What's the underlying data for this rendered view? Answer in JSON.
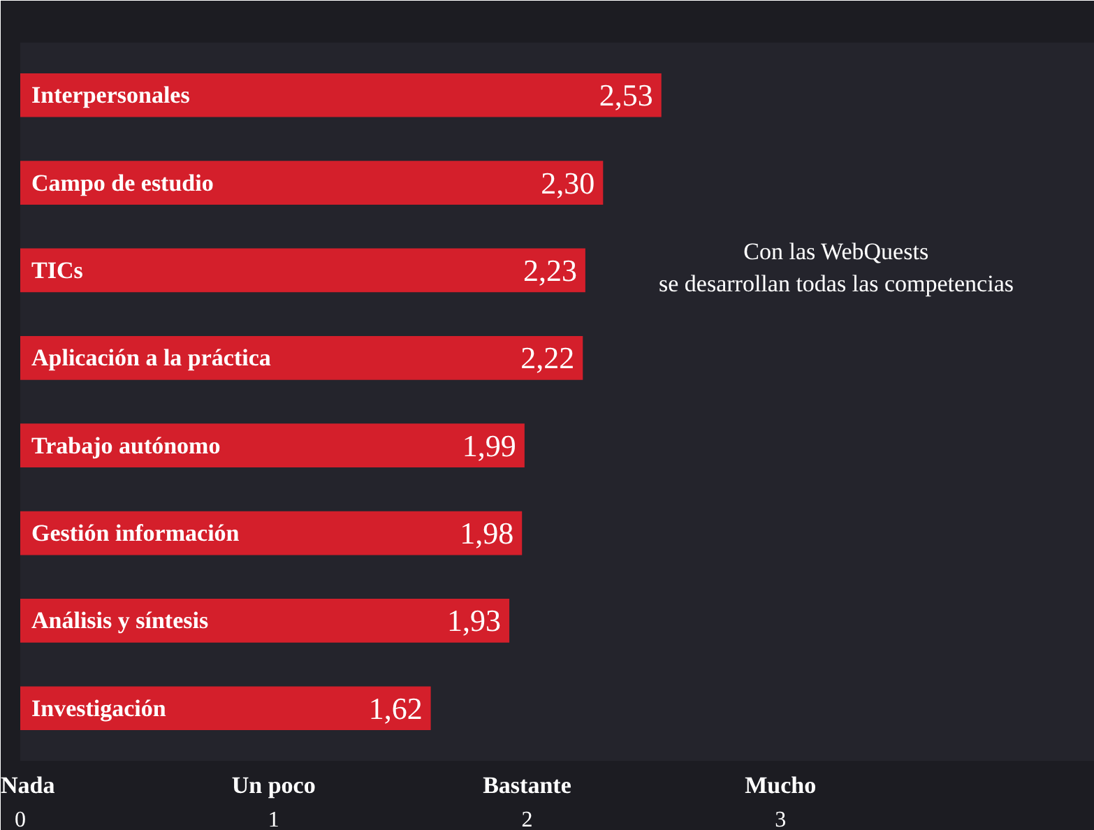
{
  "chart_data": {
    "type": "bar",
    "orientation": "horizontal",
    "categories": [
      "Interpersonales",
      "Campo de estudio",
      "TICs",
      "Aplicación a la práctica",
      "Trabajo autónomo",
      "Gestión información",
      "Análisis y síntesis",
      "Investigación"
    ],
    "values": [
      2.53,
      2.3,
      2.23,
      2.22,
      1.99,
      1.98,
      1.93,
      1.62
    ],
    "value_labels": [
      "2,53",
      "2,30",
      "2,23",
      "2,22",
      "1,99",
      "1,98",
      "1,93",
      "1,62"
    ],
    "color": "#d41f2b",
    "xlim": [
      0,
      4.24
    ],
    "xticks": [
      0,
      1,
      2,
      3
    ],
    "tick_labels": "x",
    "grid": false,
    "annotations": [
      "Con las WebQuests\nse desarrollan todas las competencias",
      "Nada",
      "Un poco",
      "Bastante",
      "Mucho"
    ]
  }
}
